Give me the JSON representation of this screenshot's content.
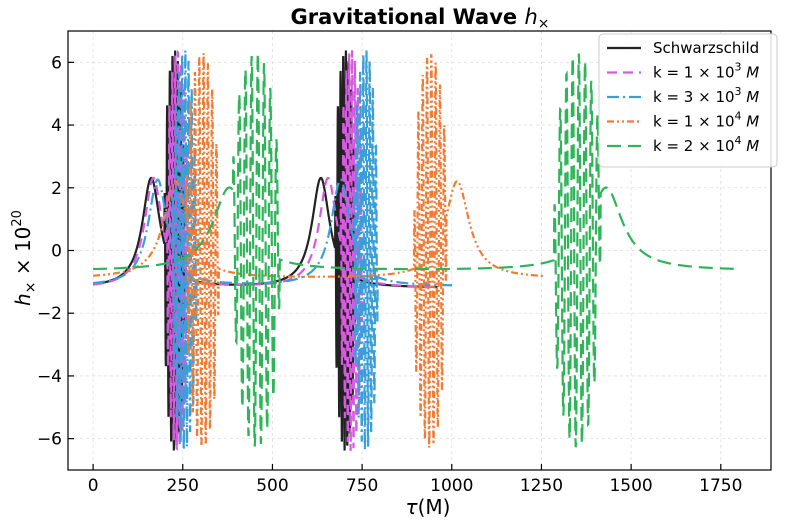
{
  "chart_data": {
    "type": "line",
    "title_main": "Gravitational Wave ",
    "title_symbol": "h",
    "title_sub": "×",
    "xlabel_tau": "τ",
    "xlabel_unit": "(M)",
    "ylabel_h": "h",
    "ylabel_sub": "×",
    "ylabel_mult": " × 10",
    "ylabel_exp": "20",
    "xlim": [
      -70,
      1890
    ],
    "ylim": [
      -7.0,
      7.0
    ],
    "xticks": [
      0,
      250,
      500,
      750,
      1000,
      1250,
      1500,
      1750
    ],
    "yticks": [
      -6,
      -4,
      -2,
      0,
      2,
      4,
      6
    ],
    "xtick_labels": [
      "0",
      "250",
      "500",
      "750",
      "1000",
      "1250",
      "1500",
      "1750"
    ],
    "ytick_labels": [
      "−6",
      "−4",
      "−2",
      "0",
      "2",
      "4",
      "6"
    ],
    "grid": true,
    "legend_position": "top-right",
    "series": [
      {
        "legend_prefix": "Schwarzschild",
        "legend_mid": "",
        "legend_exp": "",
        "legend_suffix": "",
        "color": "#222222",
        "dash": "solid",
        "x_start": 0,
        "x_end": 960,
        "burst_centers": [
          227,
          703
        ],
        "burst_half_width": 28,
        "peak_centers": [
          162,
          635
        ],
        "peak_width": 30,
        "baseline": -1.2,
        "peak_height": 2.3,
        "amplitude": 6.4
      },
      {
        "legend_prefix": "k = 1 × 10",
        "legend_mid": "",
        "legend_exp": "3",
        "legend_suffix": " M",
        "color": "#d65be0",
        "dash": "dashed",
        "x_start": 0,
        "x_end": 960,
        "burst_centers": [
          235,
          720
        ],
        "burst_half_width": 30,
        "peak_centers": [
          168,
          655
        ],
        "peak_width": 30,
        "baseline": -1.2,
        "peak_height": 2.3,
        "amplitude": 6.4
      },
      {
        "legend_prefix": "k = 3 × 10",
        "legend_mid": "",
        "legend_exp": "3",
        "legend_suffix": " M",
        "color": "#3a9fd8",
        "dash": "dashdot",
        "x_start": 0,
        "x_end": 1010,
        "burst_centers": [
          255,
          760
        ],
        "burst_half_width": 33,
        "peak_centers": [
          180,
          690
        ],
        "peak_width": 32,
        "baseline": -1.15,
        "peak_height": 2.25,
        "amplitude": 6.4
      },
      {
        "legend_prefix": "k = 1 × 10",
        "legend_mid": "",
        "legend_exp": "4",
        "legend_suffix": " M",
        "color": "#f07b34",
        "dash": "dashdotdot",
        "x_start": 0,
        "x_end": 1255,
        "burst_centers": [
          305,
          940
        ],
        "burst_half_width": 45,
        "peak_centers": [
          230,
          1015
        ],
        "peak_width": 40,
        "baseline": -0.9,
        "peak_height": 2.2,
        "amplitude": 6.3
      },
      {
        "legend_prefix": "k = 2 × 10",
        "legend_mid": "",
        "legend_exp": "4",
        "legend_suffix": " M",
        "color": "#2fb45a",
        "dash": "longdash",
        "x_start": 0,
        "x_end": 1795,
        "burst_centers": [
          455,
          1350
        ],
        "burst_half_width": 65,
        "peak_centers": [
          380,
          1430
        ],
        "peak_width": 55,
        "baseline": -0.65,
        "peak_height": 2.0,
        "amplitude": 6.3
      }
    ]
  }
}
